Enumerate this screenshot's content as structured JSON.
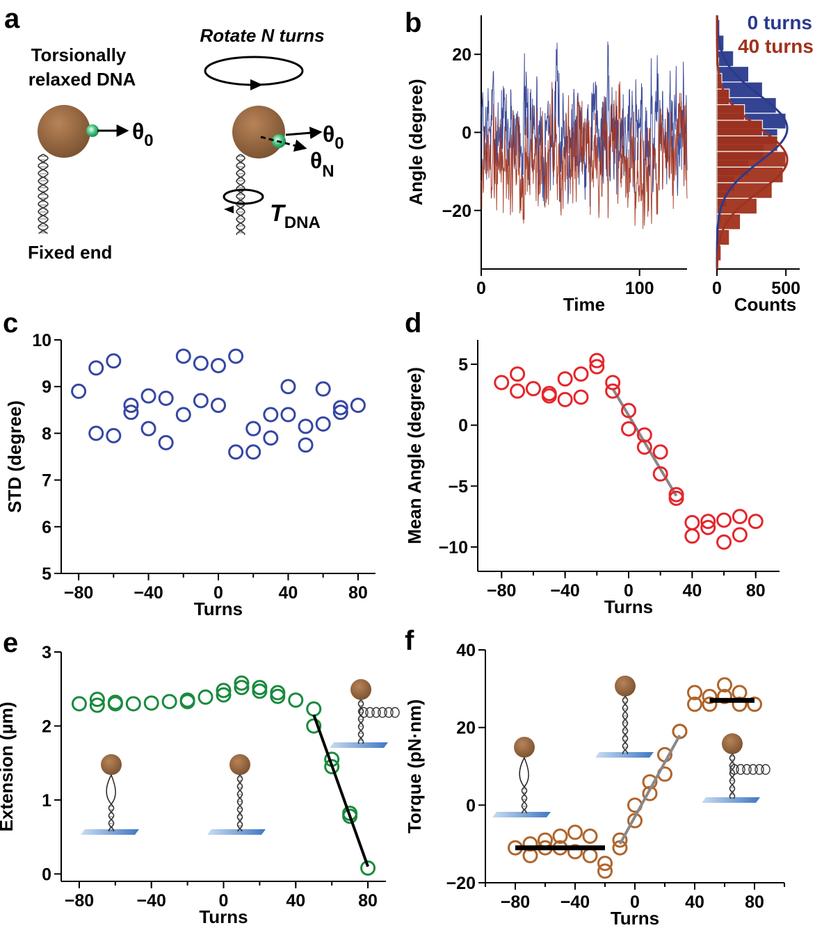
{
  "colors": {
    "blue": "#2a3a8e",
    "red_brown": "#a0321d",
    "open_blue": "#3547a3",
    "open_red": "#e4262c",
    "open_green": "#1a8a3e",
    "open_brown": "#b0642a",
    "bead": "#9a6a3e",
    "surface": "#5a8fd0",
    "fit_grey": "#888888",
    "black": "#000000"
  },
  "panel_a": {
    "label": "a",
    "relaxed_title_line1": "Torsionally",
    "relaxed_title_line2": "relaxed DNA",
    "theta0_left": "θ",
    "theta0_left_sub": "0",
    "fixed_end": "Fixed end",
    "rotate_label": "Rotate N turns",
    "theta0_right": "θ",
    "theta0_right_sub": "0",
    "thetaN": "θ",
    "thetaN_sub": "N",
    "torque_symbol": "T",
    "torque_sub": "DNA"
  },
  "chart_data": [
    {
      "panel": "b",
      "type": "line",
      "title": "",
      "xlabel": "Time",
      "ylabel": "Angle (degree)",
      "xlim": [
        0,
        130
      ],
      "ylim": [
        -35,
        30
      ],
      "xticks": [
        0,
        100
      ],
      "yticks": [
        20,
        0,
        -20
      ],
      "series": [
        {
          "name": "0 turns",
          "color": "#2a3a8e",
          "mean": 1,
          "std": 8.5,
          "n_points": 720,
          "seed": 7
        },
        {
          "name": "40 turns",
          "color": "#a0321d",
          "mean": -7,
          "std": 8.1,
          "n_points": 720,
          "seed": 19
        }
      ],
      "legend": [
        "0 turns",
        "40 turns"
      ],
      "legend_position": "top-right"
    },
    {
      "panel": "b-histogram",
      "type": "bar",
      "xlabel": "Counts",
      "xlim": [
        0,
        600
      ],
      "xticks": [
        0,
        500
      ],
      "bin_centers": [
        26,
        22,
        18,
        14,
        10,
        6,
        2,
        -2,
        -6,
        -10,
        -14,
        -18,
        -22,
        -26,
        -30
      ],
      "series": [
        {
          "name": "0 turns",
          "values": [
            20,
            50,
            120,
            230,
            330,
            430,
            500,
            440,
            340,
            230,
            130,
            70,
            30,
            12,
            5
          ],
          "fit_mean": 1,
          "fit_std": 8.5,
          "fit_peak": 510
        },
        {
          "name": "40 turns",
          "values": [
            3,
            5,
            12,
            35,
            90,
            200,
            330,
            440,
            500,
            480,
            400,
            290,
            170,
            90,
            30
          ],
          "fit_mean": -7,
          "fit_std": 8.1,
          "fit_peak": 510
        }
      ]
    },
    {
      "panel": "c",
      "type": "scatter",
      "xlabel": "Turns",
      "ylabel": "STD (degree)",
      "xlim": [
        -90,
        90
      ],
      "ylim": [
        5,
        10
      ],
      "xticks": [
        -80,
        -40,
        0,
        40,
        80
      ],
      "yticks": [
        5,
        6,
        7,
        8,
        9,
        10
      ],
      "x": [
        -80,
        -70,
        -70,
        -60,
        -60,
        -50,
        -50,
        -40,
        -40,
        -30,
        -30,
        -20,
        -20,
        -10,
        -10,
        0,
        0,
        10,
        10,
        20,
        20,
        30,
        30,
        40,
        40,
        50,
        50,
        60,
        60,
        70,
        70,
        80
      ],
      "y": [
        8.9,
        9.4,
        8.0,
        9.55,
        7.95,
        8.6,
        8.45,
        8.8,
        8.1,
        8.75,
        7.8,
        9.65,
        8.4,
        9.5,
        8.7,
        9.45,
        8.6,
        9.65,
        7.6,
        8.1,
        7.6,
        8.4,
        7.9,
        9.0,
        8.4,
        8.15,
        7.75,
        8.95,
        8.2,
        8.55,
        8.45,
        8.6
      ]
    },
    {
      "panel": "d",
      "type": "scatter",
      "xlabel": "Turns",
      "ylabel": "Mean Angle (degree)",
      "xlim": [
        -95,
        95
      ],
      "ylim": [
        -12,
        7
      ],
      "xticks": [
        -80,
        -40,
        0,
        40,
        80
      ],
      "yticks": [
        5,
        0,
        -5,
        -10
      ],
      "x": [
        -80,
        -70,
        -70,
        -60,
        -50,
        -50,
        -40,
        -40,
        -30,
        -30,
        -20,
        -20,
        -10,
        -10,
        0,
        0,
        10,
        10,
        20,
        20,
        30,
        30,
        40,
        40,
        50,
        50,
        60,
        60,
        70,
        70,
        80
      ],
      "y": [
        3.5,
        4.2,
        2.8,
        3.0,
        2.6,
        2.4,
        3.8,
        2.1,
        4.2,
        2.3,
        5.3,
        4.8,
        3.5,
        2.8,
        1.2,
        -0.3,
        -0.8,
        -1.8,
        -2.2,
        -4.0,
        -5.7,
        -6.0,
        -8.0,
        -9.1,
        -7.9,
        -8.4,
        -7.8,
        -9.6,
        -7.5,
        -9.0,
        -7.9
      ],
      "fit": {
        "x": [
          -10,
          30
        ],
        "y": [
          3.0,
          -5.8
        ]
      }
    },
    {
      "panel": "e",
      "type": "scatter",
      "xlabel": "Turns",
      "ylabel": "Extension (µm)",
      "xlim": [
        -90,
        90
      ],
      "ylim": [
        -0.1,
        3.0
      ],
      "xticks": [
        -80,
        -40,
        0,
        40,
        80
      ],
      "yticks": [
        0,
        1,
        2,
        3
      ],
      "x": [
        -80,
        -70,
        -70,
        -60,
        -60,
        -50,
        -40,
        -30,
        -20,
        -20,
        -10,
        0,
        0,
        10,
        10,
        20,
        20,
        30,
        30,
        40,
        50,
        50,
        60,
        60,
        70,
        70,
        80
      ],
      "y": [
        2.3,
        2.36,
        2.28,
        2.32,
        2.3,
        2.3,
        2.31,
        2.33,
        2.35,
        2.33,
        2.39,
        2.48,
        2.42,
        2.58,
        2.52,
        2.52,
        2.47,
        2.45,
        2.4,
        2.35,
        2.23,
        2.0,
        1.55,
        1.45,
        0.82,
        0.78,
        0.08
      ],
      "fit": {
        "x": [
          50,
          80
        ],
        "y": [
          2.15,
          0.1
        ]
      }
    },
    {
      "panel": "f",
      "type": "scatter",
      "xlabel": "Turns",
      "ylabel": "Torque (pN·nm)",
      "xlim": [
        -100,
        100
      ],
      "ylim": [
        -20,
        40
      ],
      "xticks": [
        -80,
        -40,
        0,
        40,
        80
      ],
      "yticks": [
        40,
        20,
        0,
        -20
      ],
      "x": [
        -80,
        -70,
        -70,
        -60,
        -60,
        -50,
        -50,
        -40,
        -40,
        -30,
        -30,
        -20,
        -20,
        -10,
        -10,
        0,
        0,
        10,
        10,
        20,
        20,
        30,
        30,
        40,
        40,
        50,
        50,
        60,
        60,
        70,
        70,
        80
      ],
      "y": [
        -11,
        -13,
        -10,
        -11,
        -9,
        -11,
        -8,
        -7,
        -12,
        -8,
        -13,
        -17,
        -15,
        -9,
        -11,
        -4,
        0,
        3,
        6,
        8,
        13,
        19,
        19,
        29,
        26,
        28,
        26,
        31,
        28,
        29,
        26,
        26
      ],
      "fits": [
        {
          "kind": "plateau",
          "x": [
            -80,
            -20
          ],
          "y": [
            -11,
            -11
          ],
          "color": "#000000"
        },
        {
          "kind": "slope",
          "x": [
            -10,
            30
          ],
          "y": [
            -10,
            18
          ],
          "color": "#888888"
        },
        {
          "kind": "plateau",
          "x": [
            50,
            80
          ],
          "y": [
            27,
            27
          ],
          "color": "#000000"
        }
      ]
    }
  ]
}
